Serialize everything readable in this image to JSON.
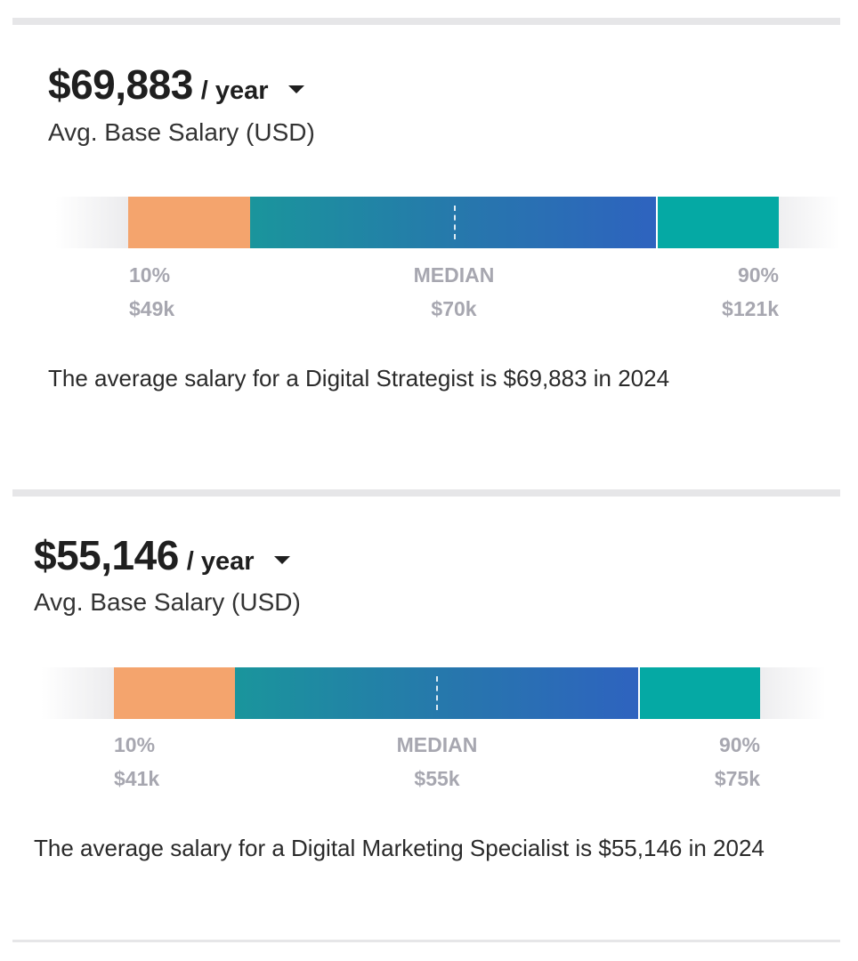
{
  "cards": [
    {
      "amount": "$69,883",
      "period": "/ year",
      "subtitle": "Avg. Base Salary (USD)",
      "percentiles": {
        "p10": {
          "label": "10%",
          "value": "$49k"
        },
        "median": {
          "label": "MEDIAN",
          "value": "$70k"
        },
        "p90": {
          "label": "90%",
          "value": "$121k"
        }
      },
      "description": "The average salary for a Digital Strategist is $69,883 in 2024"
    },
    {
      "amount": "$55,146",
      "period": "/ year",
      "subtitle": "Avg. Base Salary (USD)",
      "percentiles": {
        "p10": {
          "label": "10%",
          "value": "$41k"
        },
        "median": {
          "label": "MEDIAN",
          "value": "$55k"
        },
        "p90": {
          "label": "90%",
          "value": "$75k"
        }
      },
      "description": "The average salary for a Digital Marketing Specialist is $55,146 in 2024"
    }
  ],
  "colors": {
    "low_segment": "#f4a46d",
    "mid_segment_start": "#1a959c",
    "mid_segment_end": "#2e63bf",
    "high_segment": "#05a9a4",
    "label_gray": "#a7a7b0",
    "divider": "#e6e6e8"
  },
  "icons": {
    "period_dropdown": "caret-down-icon"
  }
}
